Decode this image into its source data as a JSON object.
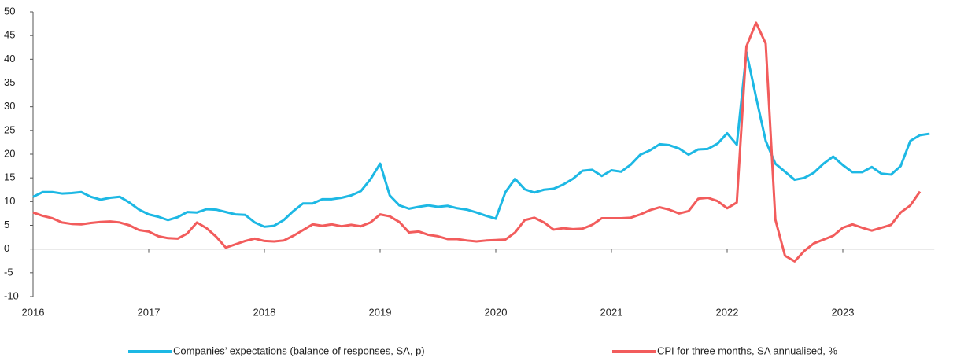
{
  "chart_data": {
    "type": "line",
    "categories": [
      "2016",
      null,
      null,
      null,
      null,
      null,
      null,
      null,
      null,
      null,
      null,
      null,
      "2017",
      null,
      null,
      null,
      null,
      null,
      null,
      null,
      null,
      null,
      null,
      null,
      "2018",
      null,
      null,
      null,
      null,
      null,
      null,
      null,
      null,
      null,
      null,
      null,
      "2019",
      null,
      null,
      null,
      null,
      null,
      null,
      null,
      null,
      null,
      null,
      null,
      "2020",
      null,
      null,
      null,
      null,
      null,
      null,
      null,
      null,
      null,
      null,
      null,
      "2021",
      null,
      null,
      null,
      null,
      null,
      null,
      null,
      null,
      null,
      null,
      null,
      "2022",
      null,
      null,
      null,
      null,
      null,
      null,
      null,
      null,
      null,
      null,
      null,
      "2023",
      null,
      null,
      null,
      null,
      null,
      null,
      null,
      null,
      null
    ],
    "series": [
      {
        "name": "Companies’ expectations (balance of responses, SA, p)",
        "color": "#1db8e4",
        "values": [
          11,
          12,
          12,
          11.7,
          11.8,
          12,
          11,
          10.4,
          10.8,
          11,
          9.8,
          8.3,
          7.3,
          6.8,
          6.1,
          6.7,
          7.8,
          7.7,
          8.4,
          8.3,
          7.8,
          7.3,
          7.2,
          5.6,
          4.7,
          4.9,
          6.1,
          8,
          9.6,
          9.6,
          10.5,
          10.5,
          10.8,
          11.3,
          12.2,
          14.7,
          18,
          11.3,
          9.2,
          8.5,
          8.9,
          9.2,
          8.9,
          9.1,
          8.6,
          8.3,
          7.7,
          7,
          6.4,
          12,
          14.8,
          12.6,
          11.9,
          12.5,
          12.7,
          13.6,
          14.8,
          16.5,
          16.7,
          15.4,
          16.6,
          16.3,
          17.8,
          19.9,
          20.8,
          22.1,
          21.9,
          21.2,
          19.9,
          21,
          21.1,
          22.2,
          24.4,
          22,
          41.5,
          32,
          22.8,
          18,
          16.3,
          14.6,
          15,
          16.1,
          18,
          19.5,
          17.7,
          16.2,
          16.2,
          17.3,
          15.9,
          15.7,
          17.5,
          22.8,
          24,
          24.3
        ]
      },
      {
        "name": "CPI for three months, SA annualised, %",
        "color": "#f25c5c",
        "values": [
          7.7,
          7,
          6.5,
          5.6,
          5.3,
          5.2,
          5.5,
          5.7,
          5.8,
          5.6,
          5,
          4,
          3.7,
          2.7,
          2.3,
          2.2,
          3.3,
          5.6,
          4.4,
          2.6,
          0.3,
          1,
          1.7,
          2.2,
          1.7,
          1.6,
          1.8,
          2.8,
          4,
          5.2,
          4.9,
          5.2,
          4.8,
          5.1,
          4.8,
          5.6,
          7.3,
          6.9,
          5.7,
          3.5,
          3.7,
          3,
          2.7,
          2.1,
          2.1,
          1.8,
          1.6,
          1.8,
          1.9,
          2,
          3.5,
          6.1,
          6.6,
          5.6,
          4.1,
          4.4,
          4.2,
          4.3,
          5.1,
          6.5,
          6.5,
          6.5,
          6.6,
          7.3,
          8.2,
          8.8,
          8.3,
          7.5,
          8,
          10.6,
          10.8,
          10.1,
          8.6,
          9.8,
          42.7,
          47.7,
          43.3,
          6.2,
          -1.4,
          -2.6,
          -0.4,
          1.2,
          2,
          2.8,
          4.5,
          5.2,
          4.5,
          3.9,
          4.5,
          5.1,
          7.7,
          9.2,
          12.1,
          null
        ]
      }
    ],
    "ylim": [
      -10,
      50
    ],
    "yticks": [
      -10,
      -5,
      0,
      5,
      10,
      15,
      20,
      25,
      30,
      35,
      40,
      45,
      50
    ],
    "grid": false
  }
}
